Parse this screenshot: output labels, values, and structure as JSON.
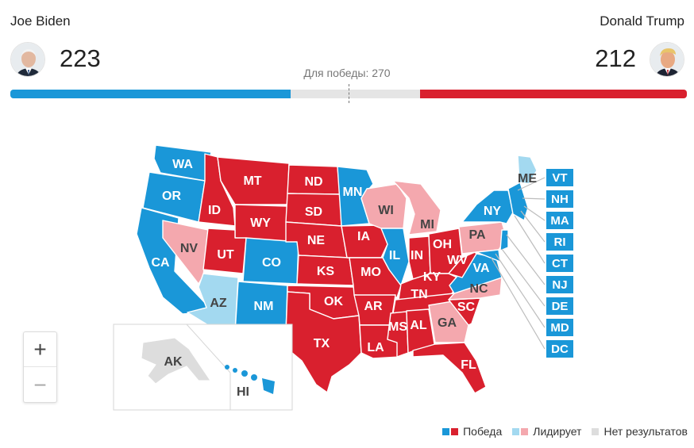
{
  "candidates": {
    "left": {
      "name": "Joe Biden",
      "votes": "223",
      "avatar_icon": "biden-portrait-icon"
    },
    "right": {
      "name": "Donald Trump",
      "votes": "212",
      "avatar_icon": "trump-portrait-icon"
    }
  },
  "threshold_label": "Для победы: 270",
  "progress": {
    "total": 538,
    "blue": 223,
    "red": 212,
    "threshold": 270
  },
  "colors": {
    "win_blue": "#1a97d8",
    "win_red": "#d9202e",
    "lead_blue": "#a3d9f0",
    "lead_red": "#f4a8ae",
    "no_result": "#dddddd"
  },
  "states": {
    "WA": "WA",
    "OR": "OR",
    "CA": "CA",
    "NV": "NV",
    "ID": "ID",
    "MT": "MT",
    "WY": "WY",
    "UT": "UT",
    "CO": "CO",
    "AZ": "AZ",
    "NM": "NM",
    "ND": "ND",
    "SD": "SD",
    "NE": "NE",
    "KS": "KS",
    "OK": "OK",
    "TX": "TX",
    "MN": "MN",
    "IA": "IA",
    "MO": "MO",
    "AR": "AR",
    "LA": "LA",
    "WI": "WI",
    "IL": "IL",
    "MI": "MI",
    "IN": "IN",
    "OH": "OH",
    "KY": "KY",
    "TN": "TN",
    "MS": "MS",
    "AL": "AL",
    "GA": "GA",
    "FL": "FL",
    "SC": "SC",
    "NC": "NC",
    "VA": "VA",
    "WV": "WV",
    "PA": "PA",
    "NY": "NY",
    "ME": "ME",
    "AK": "AK",
    "HI": "HI"
  },
  "small_states": [
    {
      "code": "VT",
      "status": "win_blue"
    },
    {
      "code": "NH",
      "status": "win_blue"
    },
    {
      "code": "MA",
      "status": "win_blue"
    },
    {
      "code": "RI",
      "status": "win_blue"
    },
    {
      "code": "CT",
      "status": "win_blue"
    },
    {
      "code": "NJ",
      "status": "win_blue"
    },
    {
      "code": "DE",
      "status": "win_blue"
    },
    {
      "code": "MD",
      "status": "win_blue"
    },
    {
      "code": "DC",
      "status": "win_blue"
    }
  ],
  "zoom": {
    "in_label": "+",
    "out_label": "−"
  },
  "legend": {
    "win": "Победа",
    "lead": "Лидирует",
    "none": "Нет результатов"
  }
}
